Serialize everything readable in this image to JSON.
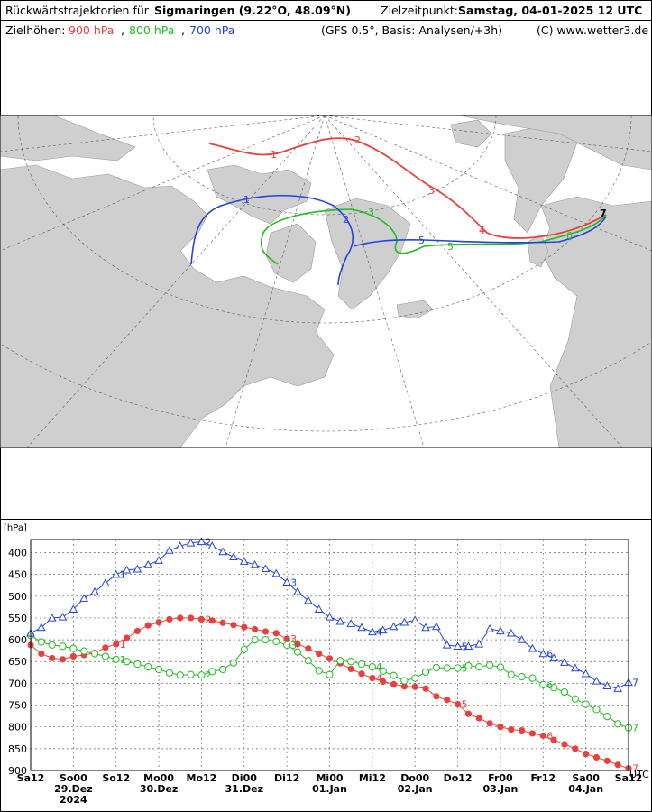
{
  "header": {
    "title_prefix": "Rückwärtstrajektorien für",
    "location": "Sigmaringen (9.22°O, 48.09°N)",
    "target_label": "Zielzeitpunkt:",
    "target_time": "Samstag, 04-01-2025  12 UTC",
    "heights_label": "Zielhöhen:",
    "h900": "900 hPa",
    "h800": "800 hPa",
    "h700": "700 hPa",
    "sep": ",",
    "model": "(GFS 0.5°, Basis: Analysen/+3h)",
    "copyright": "(C) www.wetter3.de"
  },
  "colors": {
    "h900": "#e8403a",
    "h800": "#22bb22",
    "h700": "#2244dd"
  },
  "map": {
    "marker_labels": [
      "1",
      "2",
      "3",
      "4",
      "5",
      "6",
      "7"
    ]
  },
  "chart_data": {
    "type": "line",
    "ylabel": "[hPa]",
    "y_inverted": true,
    "ylim": [
      900,
      370
    ],
    "yticks": [
      400,
      450,
      500,
      550,
      600,
      650,
      700,
      750,
      800,
      850,
      900
    ],
    "x_unit": "UTC",
    "x_ticks": [
      "Sa12",
      "So00",
      "So12",
      "Mo00",
      "Mo12",
      "Di00",
      "Di12",
      "Mi00",
      "Mi12",
      "Do00",
      "Do12",
      "Fr00",
      "Fr12",
      "Sa00",
      "Sa12"
    ],
    "x_dates": [
      {
        "tick": "So00",
        "label": "29.Dez",
        "extra": "2024"
      },
      {
        "tick": "Mo00",
        "label": "30.Dez"
      },
      {
        "tick": "Di00",
        "label": "31.Dez"
      },
      {
        "tick": "Mi00",
        "label": "01.Jan"
      },
      {
        "tick": "Do00",
        "label": "02.Jan"
      },
      {
        "tick": "Fr00",
        "label": "03.Jan"
      },
      {
        "tick": "Sa00",
        "label": "04.Jan"
      }
    ],
    "x_hours": [
      0,
      12,
      24,
      36,
      48,
      60,
      72,
      84,
      96,
      108,
      120,
      132,
      144,
      156,
      168
    ],
    "grid": true,
    "series": [
      {
        "name": "900 hPa",
        "key": "h900",
        "marker": "dot",
        "labels_at": [
          24,
          48,
          72,
          96,
          120,
          144,
          168
        ],
        "x": [
          0,
          3,
          6,
          9,
          12,
          15,
          18,
          21,
          24,
          27,
          30,
          33,
          36,
          39,
          42,
          45,
          48,
          51,
          54,
          57,
          60,
          63,
          66,
          69,
          72,
          75,
          78,
          81,
          84,
          87,
          90,
          93,
          96,
          99,
          102,
          105,
          108,
          111,
          114,
          117,
          120,
          123,
          126,
          129,
          132,
          135,
          138,
          141,
          144,
          147,
          150,
          153,
          156,
          159,
          162,
          165,
          168
        ],
        "y": [
          612,
          632,
          642,
          645,
          638,
          635,
          630,
          618,
          610,
          596,
          580,
          567,
          560,
          553,
          550,
          550,
          553,
          556,
          561,
          566,
          571,
          576,
          581,
          585,
          598,
          610,
          620,
          632,
          643,
          654,
          667,
          678,
          688,
          696,
          702,
          707,
          708,
          712,
          730,
          738,
          748,
          770,
          780,
          792,
          800,
          806,
          808,
          815,
          820,
          830,
          840,
          850,
          862,
          870,
          878,
          887,
          895
        ]
      },
      {
        "name": "800 hPa",
        "key": "h800",
        "marker": "circle",
        "labels_at": [
          24,
          48,
          72,
          96,
          120,
          144,
          168
        ],
        "x": [
          0,
          3,
          6,
          9,
          12,
          15,
          18,
          21,
          24,
          27,
          30,
          33,
          36,
          39,
          42,
          45,
          48,
          51,
          54,
          57,
          60,
          63,
          66,
          69,
          72,
          75,
          78,
          81,
          84,
          87,
          90,
          93,
          96,
          99,
          102,
          105,
          108,
          111,
          114,
          117,
          120,
          123,
          126,
          129,
          132,
          135,
          138,
          141,
          144,
          147,
          150,
          153,
          156,
          159,
          162,
          165,
          168
        ],
        "y": [
          590,
          605,
          612,
          615,
          620,
          626,
          632,
          638,
          645,
          650,
          656,
          662,
          668,
          676,
          681,
          680,
          681,
          673,
          668,
          653,
          622,
          600,
          600,
          604,
          612,
          628,
          648,
          671,
          680,
          648,
          650,
          656,
          662,
          672,
          682,
          694,
          688,
          674,
          664,
          665,
          665,
          660,
          662,
          658,
          663,
          680,
          685,
          688,
          703,
          710,
          720,
          736,
          748,
          760,
          776,
          793,
          802
        ]
      },
      {
        "name": "700 hPa",
        "key": "h700",
        "marker": "triangle",
        "labels_at": [
          24,
          48,
          72,
          96,
          120,
          144,
          168
        ],
        "x": [
          0,
          3,
          6,
          9,
          12,
          15,
          18,
          21,
          24,
          27,
          30,
          33,
          36,
          39,
          42,
          45,
          48,
          51,
          54,
          57,
          60,
          63,
          66,
          69,
          72,
          75,
          78,
          81,
          84,
          87,
          90,
          93,
          96,
          99,
          102,
          105,
          108,
          111,
          114,
          117,
          120,
          123,
          126,
          129,
          132,
          135,
          138,
          141,
          144,
          147,
          150,
          153,
          156,
          159,
          162,
          165,
          168
        ],
        "y": [
          585,
          572,
          550,
          548,
          530,
          505,
          490,
          470,
          450,
          440,
          438,
          428,
          418,
          395,
          385,
          378,
          375,
          385,
          398,
          410,
          420,
          428,
          437,
          448,
          468,
          490,
          510,
          530,
          548,
          558,
          563,
          572,
          582,
          578,
          570,
          560,
          555,
          572,
          570,
          612,
          615,
          615,
          610,
          575,
          580,
          585,
          600,
          620,
          632,
          642,
          652,
          665,
          678,
          695,
          706,
          712,
          698
        ]
      }
    ]
  }
}
